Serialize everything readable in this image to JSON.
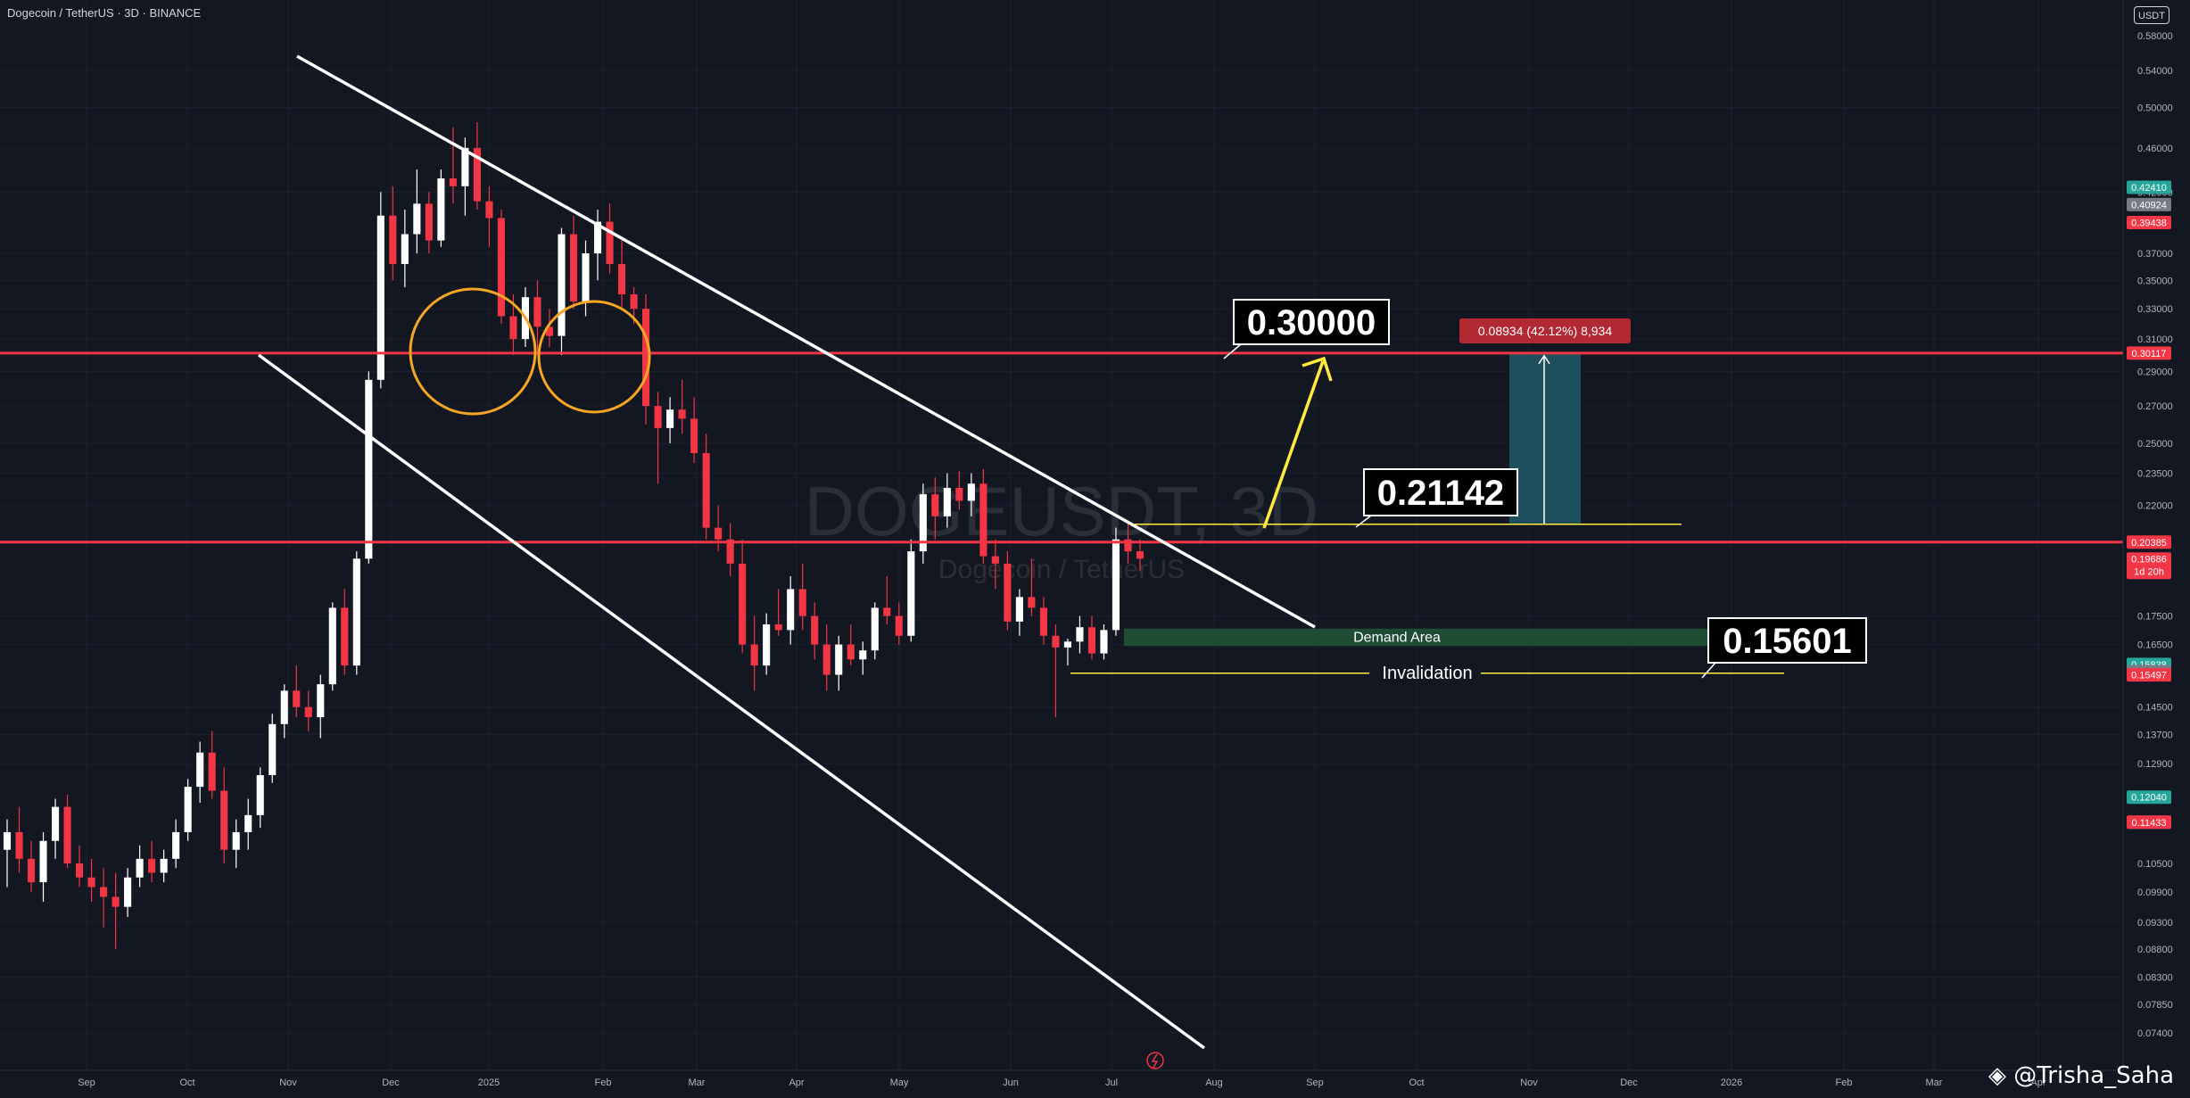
{
  "header": {
    "symbol_line": "Dogecoin / TetherUS · 3D · BINANCE",
    "currency_button": "USDT"
  },
  "watermark": {
    "main": "DOGEUSDT, 3D",
    "sub": "Dogecoin / TetherUS"
  },
  "credit": "@Trisha_Saha",
  "colors": {
    "background": "#131722",
    "up_candle": "#ffffff",
    "down_candle": "#f23645",
    "level_line": "#f23645",
    "channel": "#ffffff",
    "circle": "#f5a623",
    "arrow": "#ffeb3b",
    "demand": "#1f4d33",
    "target_box": "#1e4f5c"
  },
  "chart_data": {
    "type": "candlestick",
    "timeframe": "3D",
    "y_scale": "log",
    "ylim": [
      0.074,
      0.585
    ],
    "x_ticks": [
      "Sep",
      "Oct",
      "Nov",
      "Dec",
      "2025",
      "Feb",
      "Mar",
      "Apr",
      "May",
      "Jun",
      "Jul",
      "Aug",
      "Sep",
      "Oct",
      "Nov",
      "Dec",
      "2026",
      "Feb",
      "Mar",
      "Apr"
    ],
    "y_ticks": [
      "0.58000",
      "0.54000",
      "0.50000",
      "0.46000",
      "0.42000",
      "0.37000",
      "0.35000",
      "0.33000",
      "0.31000",
      "0.29000",
      "0.27000",
      "0.25000",
      "0.23500",
      "0.22000",
      "0.17500",
      "0.16500",
      "0.14500",
      "0.13700",
      "0.12900",
      "0.10500",
      "0.09900",
      "0.09300",
      "0.08800",
      "0.08300",
      "0.07850",
      "0.07400"
    ],
    "price_badges": [
      {
        "label": "0.42410",
        "value": 0.4241,
        "color": "#26a69a"
      },
      {
        "label": "0.40924",
        "value": 0.40924,
        "color": "#787b86"
      },
      {
        "label": "0.39438",
        "value": 0.39438,
        "color": "#f23645"
      },
      {
        "label": "0.30117",
        "value": 0.30117,
        "color": "#f23645"
      },
      {
        "label": "0.20385",
        "value": 0.20385,
        "color": "#f23645"
      },
      {
        "label": "0.19686",
        "value": 0.19686,
        "color": "#f23645",
        "sub": "1d 20h"
      },
      {
        "label": "0.15838",
        "value": 0.15838,
        "color": "#26a69a"
      },
      {
        "label": "0.15596",
        "value": 0.15596,
        "color": "#787b86"
      },
      {
        "label": "0.15497",
        "value": 0.15497,
        "color": "#f23645"
      },
      {
        "label": "0.12040",
        "value": 0.1204,
        "color": "#26a69a"
      },
      {
        "label": "0.11434",
        "value": 0.11434,
        "color": "#787b86"
      },
      {
        "label": "0.11433",
        "value": 0.11433,
        "color": "#f23645"
      }
    ],
    "candles": [
      [
        0.108,
        0.115,
        0.1,
        0.112
      ],
      [
        0.112,
        0.118,
        0.103,
        0.106
      ],
      [
        0.106,
        0.11,
        0.099,
        0.101
      ],
      [
        0.101,
        0.112,
        0.097,
        0.11
      ],
      [
        0.11,
        0.12,
        0.106,
        0.118
      ],
      [
        0.118,
        0.121,
        0.104,
        0.105
      ],
      [
        0.105,
        0.109,
        0.1,
        0.102
      ],
      [
        0.102,
        0.106,
        0.097,
        0.1
      ],
      [
        0.1,
        0.104,
        0.092,
        0.098
      ],
      [
        0.098,
        0.103,
        0.088,
        0.096
      ],
      [
        0.096,
        0.104,
        0.094,
        0.102
      ],
      [
        0.102,
        0.109,
        0.1,
        0.106
      ],
      [
        0.106,
        0.11,
        0.101,
        0.103
      ],
      [
        0.103,
        0.108,
        0.101,
        0.106
      ],
      [
        0.106,
        0.115,
        0.104,
        0.112
      ],
      [
        0.112,
        0.125,
        0.11,
        0.123
      ],
      [
        0.123,
        0.135,
        0.119,
        0.132
      ],
      [
        0.132,
        0.138,
        0.12,
        0.122
      ],
      [
        0.122,
        0.128,
        0.105,
        0.108
      ],
      [
        0.108,
        0.115,
        0.104,
        0.112
      ],
      [
        0.112,
        0.12,
        0.108,
        0.116
      ],
      [
        0.116,
        0.128,
        0.113,
        0.126
      ],
      [
        0.126,
        0.143,
        0.124,
        0.14
      ],
      [
        0.14,
        0.152,
        0.136,
        0.15
      ],
      [
        0.15,
        0.158,
        0.142,
        0.145
      ],
      [
        0.145,
        0.15,
        0.138,
        0.142
      ],
      [
        0.142,
        0.155,
        0.136,
        0.152
      ],
      [
        0.152,
        0.18,
        0.15,
        0.178
      ],
      [
        0.178,
        0.185,
        0.155,
        0.158
      ],
      [
        0.158,
        0.2,
        0.155,
        0.197
      ],
      [
        0.197,
        0.29,
        0.195,
        0.285
      ],
      [
        0.285,
        0.42,
        0.28,
        0.4
      ],
      [
        0.4,
        0.425,
        0.35,
        0.362
      ],
      [
        0.362,
        0.405,
        0.345,
        0.385
      ],
      [
        0.385,
        0.44,
        0.37,
        0.41
      ],
      [
        0.41,
        0.42,
        0.37,
        0.38
      ],
      [
        0.38,
        0.44,
        0.375,
        0.432
      ],
      [
        0.432,
        0.48,
        0.41,
        0.425
      ],
      [
        0.425,
        0.47,
        0.4,
        0.46
      ],
      [
        0.46,
        0.485,
        0.405,
        0.412
      ],
      [
        0.412,
        0.425,
        0.375,
        0.398
      ],
      [
        0.398,
        0.405,
        0.32,
        0.325
      ],
      [
        0.325,
        0.34,
        0.3,
        0.31
      ],
      [
        0.31,
        0.345,
        0.305,
        0.338
      ],
      [
        0.338,
        0.35,
        0.3,
        0.318
      ],
      [
        0.318,
        0.33,
        0.305,
        0.312
      ],
      [
        0.312,
        0.39,
        0.3,
        0.385
      ],
      [
        0.385,
        0.4,
        0.33,
        0.335
      ],
      [
        0.335,
        0.38,
        0.325,
        0.37
      ],
      [
        0.37,
        0.405,
        0.35,
        0.395
      ],
      [
        0.395,
        0.41,
        0.355,
        0.362
      ],
      [
        0.362,
        0.38,
        0.33,
        0.34
      ],
      [
        0.34,
        0.345,
        0.32,
        0.33
      ],
      [
        0.33,
        0.34,
        0.26,
        0.27
      ],
      [
        0.27,
        0.278,
        0.23,
        0.258
      ],
      [
        0.258,
        0.275,
        0.25,
        0.268
      ],
      [
        0.268,
        0.285,
        0.255,
        0.263
      ],
      [
        0.263,
        0.275,
        0.24,
        0.245
      ],
      [
        0.245,
        0.255,
        0.205,
        0.21
      ],
      [
        0.21,
        0.22,
        0.2,
        0.205
      ],
      [
        0.205,
        0.212,
        0.19,
        0.195
      ],
      [
        0.195,
        0.205,
        0.162,
        0.165
      ],
      [
        0.165,
        0.175,
        0.15,
        0.158
      ],
      [
        0.158,
        0.176,
        0.155,
        0.172
      ],
      [
        0.172,
        0.185,
        0.168,
        0.17
      ],
      [
        0.17,
        0.19,
        0.165,
        0.185
      ],
      [
        0.185,
        0.195,
        0.17,
        0.175
      ],
      [
        0.175,
        0.18,
        0.16,
        0.165
      ],
      [
        0.165,
        0.172,
        0.15,
        0.155
      ],
      [
        0.155,
        0.168,
        0.15,
        0.165
      ],
      [
        0.165,
        0.172,
        0.158,
        0.16
      ],
      [
        0.16,
        0.166,
        0.155,
        0.163
      ],
      [
        0.163,
        0.18,
        0.16,
        0.178
      ],
      [
        0.178,
        0.19,
        0.172,
        0.175
      ],
      [
        0.175,
        0.18,
        0.165,
        0.168
      ],
      [
        0.168,
        0.205,
        0.166,
        0.2
      ],
      [
        0.2,
        0.23,
        0.195,
        0.225
      ],
      [
        0.225,
        0.233,
        0.205,
        0.215
      ],
      [
        0.215,
        0.235,
        0.21,
        0.228
      ],
      [
        0.228,
        0.236,
        0.218,
        0.222
      ],
      [
        0.222,
        0.235,
        0.215,
        0.23
      ],
      [
        0.23,
        0.237,
        0.195,
        0.198
      ],
      [
        0.198,
        0.205,
        0.185,
        0.195
      ],
      [
        0.195,
        0.2,
        0.17,
        0.173
      ],
      [
        0.173,
        0.185,
        0.168,
        0.182
      ],
      [
        0.182,
        0.197,
        0.175,
        0.178
      ],
      [
        0.178,
        0.182,
        0.165,
        0.168
      ],
      [
        0.168,
        0.172,
        0.142,
        0.164
      ],
      [
        0.164,
        0.167,
        0.158,
        0.166
      ],
      [
        0.166,
        0.175,
        0.162,
        0.171
      ],
      [
        0.171,
        0.175,
        0.16,
        0.162
      ],
      [
        0.162,
        0.172,
        0.16,
        0.17
      ],
      [
        0.17,
        0.21,
        0.168,
        0.205
      ],
      [
        0.205,
        0.212,
        0.195,
        0.2
      ],
      [
        0.2,
        0.205,
        0.192,
        0.197
      ]
    ],
    "levels": [
      {
        "name": "resistance-target",
        "value": 0.30117
      },
      {
        "name": "resistance-breakout",
        "value": 0.20385
      }
    ],
    "annotations": {
      "target_label": "0.30000",
      "breakout_label": "0.21142",
      "demand_label": "0.15601",
      "demand_area": "Demand Area",
      "invalidation": "Invalidation",
      "measure_label": "0.08934 (42.12%) 8,934"
    }
  }
}
